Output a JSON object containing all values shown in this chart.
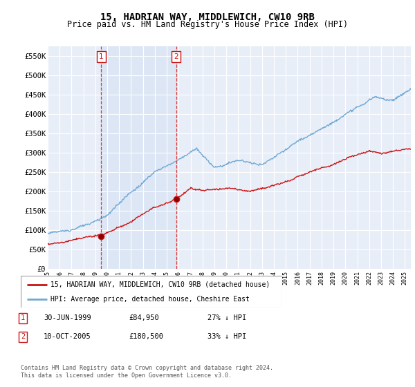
{
  "title": "15, HADRIAN WAY, MIDDLEWICH, CW10 9RB",
  "subtitle": "Price paid vs. HM Land Registry's House Price Index (HPI)",
  "ylim": [
    0,
    575000
  ],
  "yticks": [
    0,
    50000,
    100000,
    150000,
    200000,
    250000,
    300000,
    350000,
    400000,
    450000,
    500000,
    550000
  ],
  "ytick_labels": [
    "£0",
    "£50K",
    "£100K",
    "£150K",
    "£200K",
    "£250K",
    "£300K",
    "£350K",
    "£400K",
    "£450K",
    "£500K",
    "£550K"
  ],
  "hpi_color": "#6fa8d5",
  "price_color": "#cc1111",
  "vline_color": "#dd3333",
  "annotation_box_color": "#cc1111",
  "background_color": "#ffffff",
  "plot_bg_color": "#e8eef8",
  "shade_color": "#dce6f5",
  "grid_color": "#ffffff",
  "sale1_x": 1999.5,
  "sale1_price": 84950,
  "sale2_x": 2005.78,
  "sale2_price": 180500,
  "xmin": 1995,
  "xmax": 2025.5,
  "legend_entries": [
    "15, HADRIAN WAY, MIDDLEWICH, CW10 9RB (detached house)",
    "HPI: Average price, detached house, Cheshire East"
  ],
  "table_rows": [
    {
      "num": "1",
      "date": "30-JUN-1999",
      "price": "£84,950",
      "note": "27% ↓ HPI"
    },
    {
      "num": "2",
      "date": "10-OCT-2005",
      "price": "£180,500",
      "note": "33% ↓ HPI"
    }
  ],
  "footnote": "Contains HM Land Registry data © Crown copyright and database right 2024.\nThis data is licensed under the Open Government Licence v3.0.",
  "title_fontsize": 10,
  "subtitle_fontsize": 8.5,
  "tick_fontsize": 7.5
}
